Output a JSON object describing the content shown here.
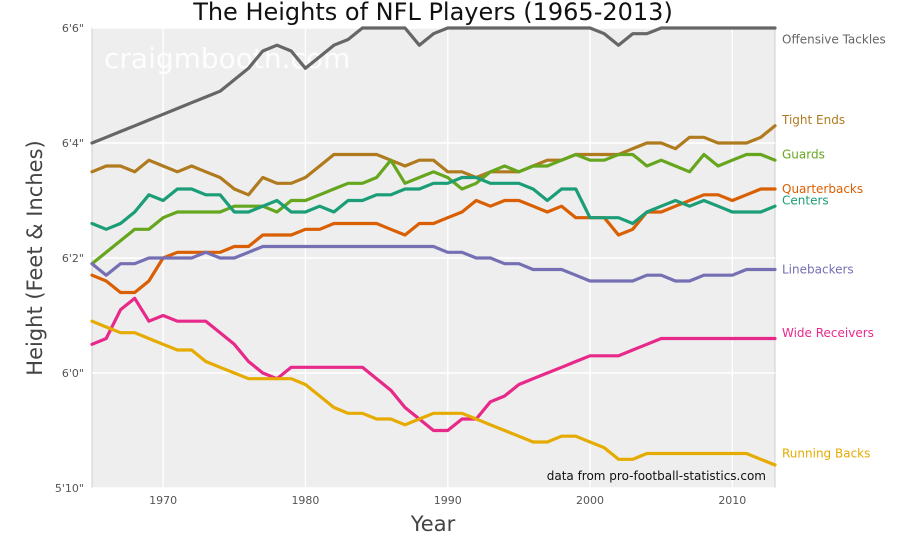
{
  "chart_data": {
    "type": "line",
    "title": "The Heights of NFL Players (1965-2013)",
    "xlabel": "Year",
    "ylabel": "Height (Feet & Inches)",
    "xlim": [
      1965,
      2013
    ],
    "ylim": [
      70,
      78
    ],
    "x_ticks": [
      1970,
      1980,
      1990,
      2000,
      2010
    ],
    "y_ticks": [
      {
        "value": 70,
        "label": "5'10\""
      },
      {
        "value": 72,
        "label": "6'0\""
      },
      {
        "value": 74,
        "label": "6'2\""
      },
      {
        "value": 76,
        "label": "6'4\""
      },
      {
        "value": 78,
        "label": "6'6\""
      }
    ],
    "grid": true,
    "watermark": "craigmbooth.com",
    "source_note": "data from pro-football-statistics.com",
    "x": [
      1965,
      1966,
      1967,
      1968,
      1969,
      1970,
      1971,
      1972,
      1973,
      1974,
      1975,
      1976,
      1977,
      1978,
      1979,
      1980,
      1981,
      1982,
      1983,
      1984,
      1985,
      1986,
      1987,
      1988,
      1989,
      1990,
      1991,
      1992,
      1993,
      1994,
      1995,
      1996,
      1997,
      1998,
      1999,
      2000,
      2001,
      2002,
      2003,
      2004,
      2005,
      2006,
      2007,
      2008,
      2009,
      2010,
      2011,
      2012,
      2013
    ],
    "series": [
      {
        "name": "Offensive Tackles",
        "color": "#666666",
        "values": [
          76.0,
          76.1,
          76.2,
          76.3,
          76.4,
          76.5,
          76.6,
          76.7,
          76.8,
          76.9,
          77.1,
          77.3,
          77.6,
          77.7,
          77.6,
          77.3,
          77.5,
          77.7,
          77.8,
          78.0,
          78.0,
          78.0,
          78.0,
          77.7,
          77.9,
          78.0,
          78.0,
          78.0,
          78.0,
          78.0,
          78.0,
          78.0,
          78.0,
          78.0,
          78.0,
          78.0,
          77.9,
          77.7,
          77.9,
          77.9,
          78.0,
          78.0,
          78.0,
          78.0,
          78.0,
          78.0,
          78.0,
          78.0,
          78.0
        ]
      },
      {
        "name": "Tight Ends",
        "color": "#b07a1e",
        "values": [
          75.5,
          75.6,
          75.6,
          75.5,
          75.7,
          75.6,
          75.5,
          75.6,
          75.5,
          75.4,
          75.2,
          75.1,
          75.4,
          75.3,
          75.3,
          75.4,
          75.6,
          75.8,
          75.8,
          75.8,
          75.8,
          75.7,
          75.6,
          75.7,
          75.7,
          75.5,
          75.5,
          75.4,
          75.5,
          75.5,
          75.5,
          75.6,
          75.7,
          75.7,
          75.8,
          75.8,
          75.8,
          75.8,
          75.9,
          76.0,
          76.0,
          75.9,
          76.1,
          76.1,
          76.0,
          76.0,
          76.0,
          76.1,
          76.3
        ]
      },
      {
        "name": "Guards",
        "color": "#66a61e",
        "values": [
          73.9,
          74.1,
          74.3,
          74.5,
          74.5,
          74.7,
          74.8,
          74.8,
          74.8,
          74.8,
          74.9,
          74.9,
          74.9,
          74.8,
          75.0,
          75.0,
          75.1,
          75.2,
          75.3,
          75.3,
          75.4,
          75.7,
          75.3,
          75.4,
          75.5,
          75.4,
          75.2,
          75.3,
          75.5,
          75.6,
          75.5,
          75.6,
          75.6,
          75.7,
          75.8,
          75.7,
          75.7,
          75.8,
          75.8,
          75.6,
          75.7,
          75.6,
          75.5,
          75.8,
          75.6,
          75.7,
          75.8,
          75.8,
          75.7
        ]
      },
      {
        "name": "Quarterbacks",
        "color": "#d95f02",
        "values": [
          73.7,
          73.6,
          73.4,
          73.4,
          73.6,
          74.0,
          74.1,
          74.1,
          74.1,
          74.1,
          74.2,
          74.2,
          74.4,
          74.4,
          74.4,
          74.5,
          74.5,
          74.6,
          74.6,
          74.6,
          74.6,
          74.5,
          74.4,
          74.6,
          74.6,
          74.7,
          74.8,
          75.0,
          74.9,
          75.0,
          75.0,
          74.9,
          74.8,
          74.9,
          74.7,
          74.7,
          74.7,
          74.4,
          74.5,
          74.8,
          74.8,
          74.9,
          75.0,
          75.1,
          75.1,
          75.0,
          75.1,
          75.2,
          75.2
        ]
      },
      {
        "name": "Centers",
        "color": "#1b9e77",
        "values": [
          74.6,
          74.5,
          74.6,
          74.8,
          75.1,
          75.0,
          75.2,
          75.2,
          75.1,
          75.1,
          74.8,
          74.8,
          74.9,
          75.0,
          74.8,
          74.8,
          74.9,
          74.8,
          75.0,
          75.0,
          75.1,
          75.1,
          75.2,
          75.2,
          75.3,
          75.3,
          75.4,
          75.4,
          75.3,
          75.3,
          75.3,
          75.2,
          75.0,
          75.2,
          75.2,
          74.7,
          74.7,
          74.7,
          74.6,
          74.8,
          74.9,
          75.0,
          74.9,
          75.0,
          74.9,
          74.8,
          74.8,
          74.8,
          74.9
        ]
      },
      {
        "name": "Linebackers",
        "color": "#7570b3",
        "values": [
          73.9,
          73.7,
          73.9,
          73.9,
          74.0,
          74.0,
          74.0,
          74.0,
          74.1,
          74.0,
          74.0,
          74.1,
          74.2,
          74.2,
          74.2,
          74.2,
          74.2,
          74.2,
          74.2,
          74.2,
          74.2,
          74.2,
          74.2,
          74.2,
          74.2,
          74.1,
          74.1,
          74.0,
          74.0,
          73.9,
          73.9,
          73.8,
          73.8,
          73.8,
          73.7,
          73.6,
          73.6,
          73.6,
          73.6,
          73.7,
          73.7,
          73.6,
          73.6,
          73.7,
          73.7,
          73.7,
          73.8,
          73.8,
          73.8
        ]
      },
      {
        "name": "Wide Receivers",
        "color": "#e7298a",
        "values": [
          72.5,
          72.6,
          73.1,
          73.3,
          72.9,
          73.0,
          72.9,
          72.9,
          72.9,
          72.7,
          72.5,
          72.2,
          72.0,
          71.9,
          72.1,
          72.1,
          72.1,
          72.1,
          72.1,
          72.1,
          71.9,
          71.7,
          71.4,
          71.2,
          71.0,
          71.0,
          71.2,
          71.2,
          71.5,
          71.6,
          71.8,
          71.9,
          72.0,
          72.1,
          72.2,
          72.3,
          72.3,
          72.3,
          72.4,
          72.5,
          72.6,
          72.6,
          72.6,
          72.6,
          72.6,
          72.6,
          72.6,
          72.6,
          72.6
        ]
      },
      {
        "name": "Running Backs",
        "color": "#e6ab02",
        "values": [
          72.9,
          72.8,
          72.7,
          72.7,
          72.6,
          72.5,
          72.4,
          72.4,
          72.2,
          72.1,
          72.0,
          71.9,
          71.9,
          71.9,
          71.9,
          71.8,
          71.6,
          71.4,
          71.3,
          71.3,
          71.2,
          71.2,
          71.1,
          71.2,
          71.3,
          71.3,
          71.3,
          71.2,
          71.1,
          71.0,
          70.9,
          70.8,
          70.8,
          70.9,
          70.9,
          70.8,
          70.7,
          70.5,
          70.5,
          70.6,
          70.6,
          70.6,
          70.6,
          70.6,
          70.6,
          70.6,
          70.6,
          70.5,
          70.4
        ]
      }
    ],
    "series_label_y": {
      "Offensive Tackles": 77.8,
      "Tight Ends": 76.4,
      "Guards": 75.8,
      "Quarterbacks": 75.2,
      "Centers": 75.0,
      "Linebackers": 73.8,
      "Wide Receivers": 72.7,
      "Running Backs": 70.6
    }
  }
}
